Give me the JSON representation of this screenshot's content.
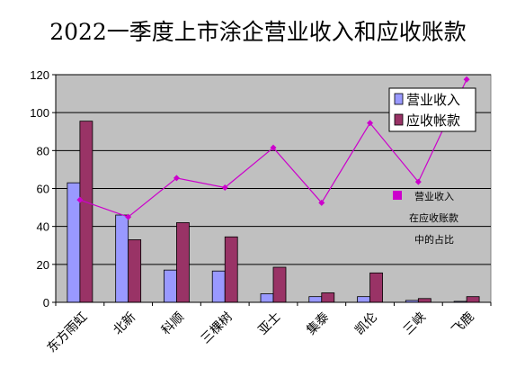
{
  "chart_data": {
    "type": "bar",
    "title": "2022一季度上市涂企营业收入和应收账款",
    "categories": [
      "东方雨虹",
      "北新",
      "科顺",
      "三棵树",
      "亚士",
      "集泰",
      "凯伦",
      "三峡",
      "飞鹿"
    ],
    "ylim": [
      0,
      120
    ],
    "yticks": [
      0,
      20,
      40,
      60,
      80,
      100,
      120
    ],
    "grid": true,
    "legend_position": "top-right",
    "series": [
      {
        "name": "营业收入",
        "type": "bar",
        "color": "#9999ff",
        "values": [
          63,
          46,
          17,
          16.5,
          4.5,
          3,
          3,
          1,
          0.5
        ]
      },
      {
        "name": "应收帐款",
        "type": "bar",
        "color": "#993366",
        "values": [
          95.5,
          33,
          42,
          34.5,
          18.5,
          5,
          15.5,
          2,
          3
        ]
      },
      {
        "name": "营业收入在应收账款中的占比",
        "type": "line",
        "color": "#cc00cc",
        "values": [
          54,
          45,
          65.5,
          60.5,
          81.5,
          52.5,
          94.5,
          63.5,
          117.5
        ]
      }
    ],
    "annotation": [
      "营业收入",
      "在应收账款",
      "中的占比"
    ]
  }
}
